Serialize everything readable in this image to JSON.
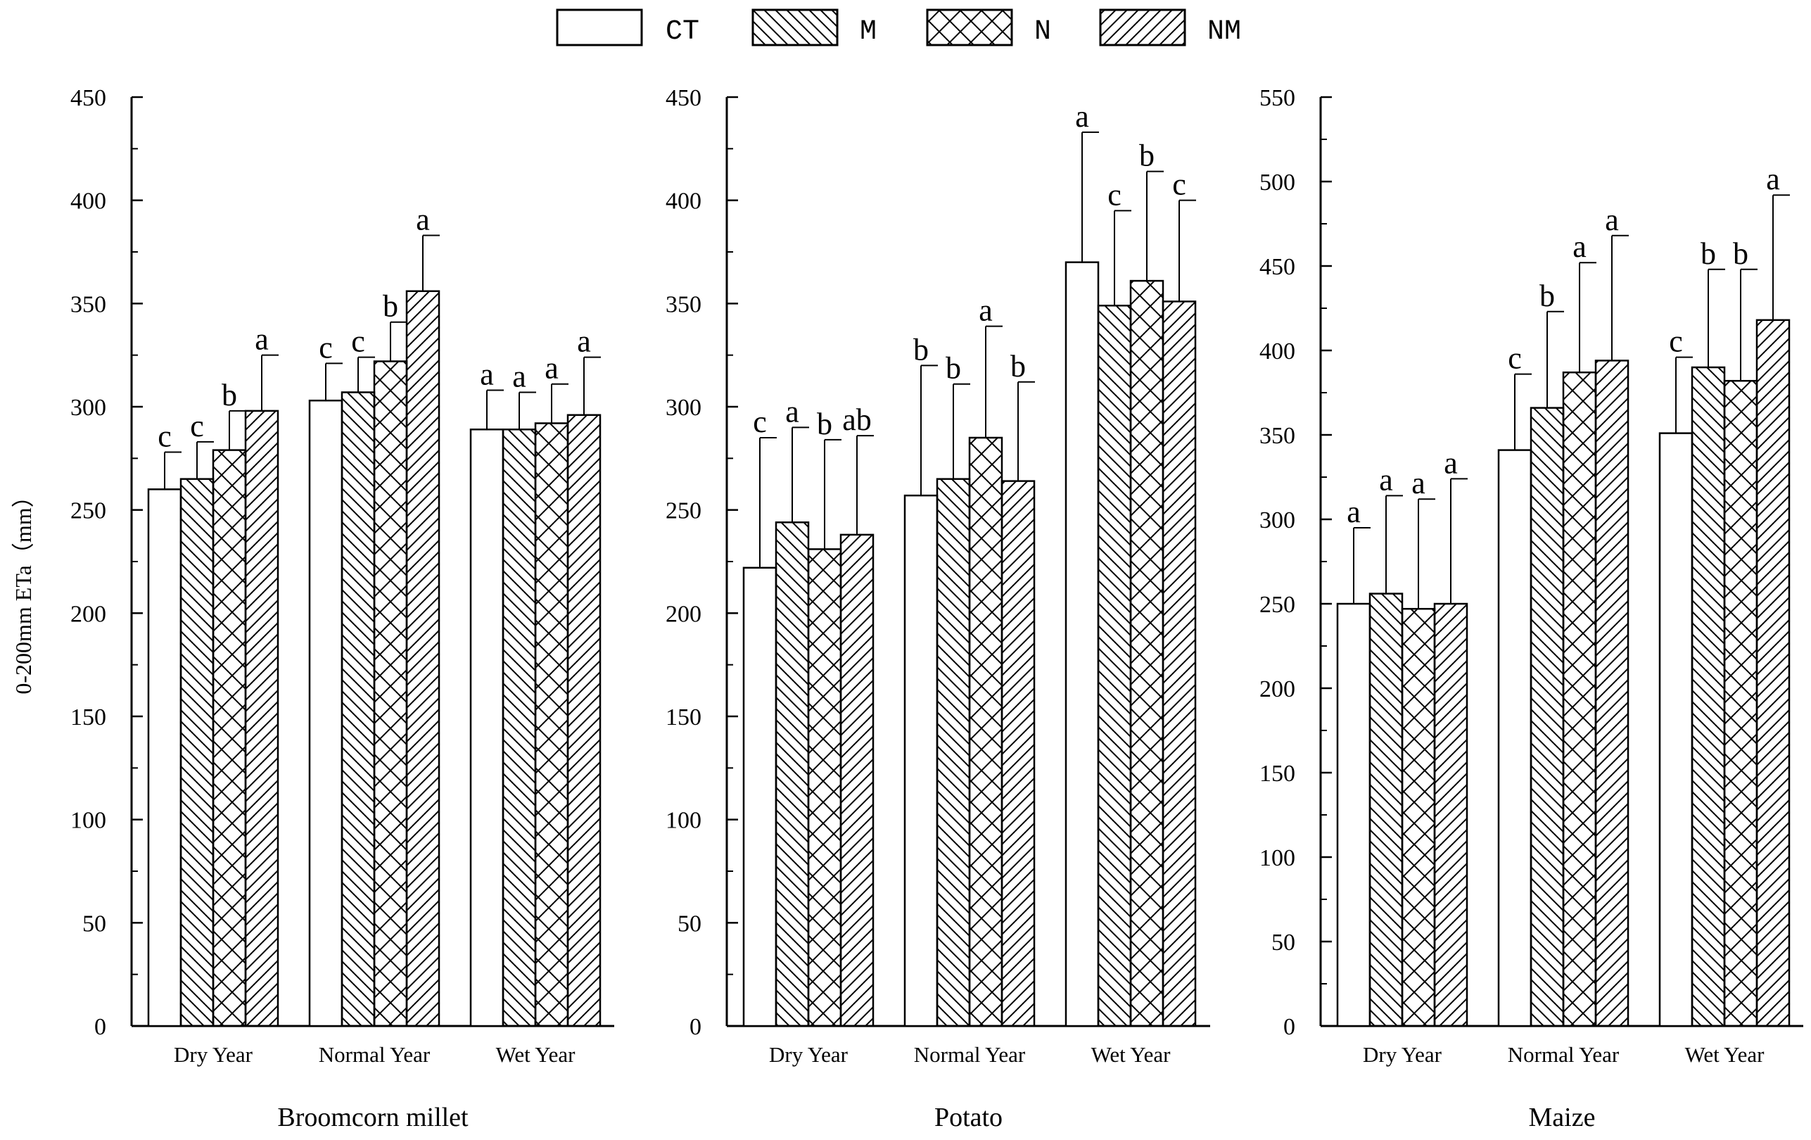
{
  "legend": [
    {
      "key": "CT",
      "label": "CT",
      "pattern": "none"
    },
    {
      "key": "M",
      "label": "M",
      "pattern": "back-diagonal"
    },
    {
      "key": "N",
      "label": "N",
      "pattern": "cross"
    },
    {
      "key": "NM",
      "label": "NM",
      "pattern": "forward-diagonal"
    }
  ],
  "y_axis_label": "0-200mm ETa（mm）",
  "chart_data": [
    {
      "type": "bar",
      "title": "Broomcorn millet",
      "xlabel": "Broomcorn millet",
      "ylabel": "0-200mm ETa（mm）",
      "ylim": [
        0,
        450
      ],
      "yticks": [
        0,
        50,
        100,
        150,
        200,
        250,
        300,
        350,
        400,
        450
      ],
      "categories": [
        "Dry Year",
        "Normal Year",
        "Wet Year"
      ],
      "series": [
        {
          "name": "CT",
          "values": [
            260,
            303,
            289
          ],
          "errors": [
            18,
            18,
            19
          ],
          "sig": [
            "c",
            "c",
            "a"
          ]
        },
        {
          "name": "M",
          "values": [
            265,
            307,
            289
          ],
          "errors": [
            18,
            17,
            18
          ],
          "sig": [
            "c",
            "c",
            "a"
          ]
        },
        {
          "name": "N",
          "values": [
            279,
            322,
            292
          ],
          "errors": [
            19,
            19,
            19
          ],
          "sig": [
            "b",
            "b",
            "a"
          ]
        },
        {
          "name": "NM",
          "values": [
            298,
            356,
            296
          ],
          "errors": [
            27,
            27,
            28
          ],
          "sig": [
            "a",
            "a",
            "a"
          ]
        }
      ]
    },
    {
      "type": "bar",
      "title": "Potato",
      "xlabel": "Potato",
      "ylabel": "",
      "ylim": [
        0,
        450
      ],
      "yticks": [
        0,
        50,
        100,
        150,
        200,
        250,
        300,
        350,
        400,
        450
      ],
      "categories": [
        "Dry Year",
        "Normal Year",
        "Wet Year"
      ],
      "series": [
        {
          "name": "CT",
          "values": [
            222,
            257,
            370
          ],
          "errors": [
            63,
            63,
            63
          ],
          "sig": [
            "c",
            "b",
            "a"
          ]
        },
        {
          "name": "M",
          "values": [
            244,
            265,
            349
          ],
          "errors": [
            46,
            46,
            46
          ],
          "sig": [
            "a",
            "b",
            "c"
          ]
        },
        {
          "name": "N",
          "values": [
            231,
            285,
            361
          ],
          "errors": [
            53,
            54,
            53
          ],
          "sig": [
            "b",
            "a",
            "b"
          ]
        },
        {
          "name": "NM",
          "values": [
            238,
            264,
            351
          ],
          "errors": [
            48,
            48,
            49
          ],
          "sig": [
            "ab",
            "b",
            "c"
          ]
        }
      ]
    },
    {
      "type": "bar",
      "title": "Maize",
      "xlabel": "Maize",
      "ylabel": "",
      "ylim": [
        0,
        550
      ],
      "yticks": [
        0,
        50,
        100,
        150,
        200,
        250,
        300,
        350,
        400,
        450,
        500,
        550
      ],
      "categories": [
        "Dry Year",
        "Normal Year",
        "Wet Year"
      ],
      "series": [
        {
          "name": "CT",
          "values": [
            250,
            341,
            351
          ],
          "errors": [
            45,
            45,
            45
          ],
          "sig": [
            "a",
            "c",
            "c"
          ]
        },
        {
          "name": "M",
          "values": [
            256,
            366,
            390
          ],
          "errors": [
            58,
            57,
            58
          ],
          "sig": [
            "a",
            "b",
            "b"
          ]
        },
        {
          "name": "N",
          "values": [
            247,
            387,
            382
          ],
          "errors": [
            65,
            65,
            66
          ],
          "sig": [
            "a",
            "a",
            "b"
          ]
        },
        {
          "name": "NM",
          "values": [
            250,
            394,
            418
          ],
          "errors": [
            74,
            74,
            74
          ],
          "sig": [
            "a",
            "a",
            "a"
          ]
        }
      ]
    }
  ]
}
